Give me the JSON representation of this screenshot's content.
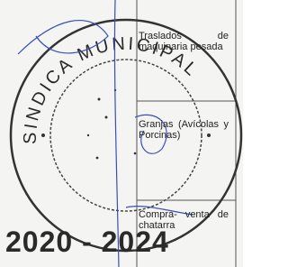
{
  "stamp": {
    "arc_text": "SINDICA MUNICIPAL",
    "years": "2020 - 2024"
  },
  "table": {
    "rows": [
      [
        "Traslados de maquinaria pesada"
      ],
      [
        "Granjas (Avícolas y Porcinas)"
      ],
      [
        "Compra- venta de chatarra"
      ]
    ]
  }
}
